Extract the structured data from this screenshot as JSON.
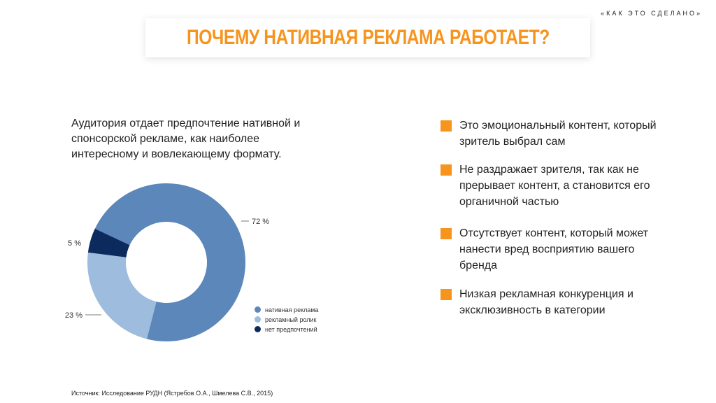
{
  "brand": "«КАК ЭТО СДЕЛАНО»",
  "title": "ПОЧЕМУ НАТИВНАЯ РЕКЛАМА РАБОТАЕТ?",
  "intro": "Аудитория отдает предпочтение нативной и спонсорской рекламе, как наиболее интересному и вовлекающему формату.",
  "chart_data": {
    "type": "pie",
    "donut": true,
    "slices": [
      {
        "label": "нативная реклама",
        "value": 72,
        "value_label": "72 %",
        "color": "#5b87bb"
      },
      {
        "label": "рекламный ролик",
        "value": 23,
        "value_label": "23 %",
        "color": "#9dbcde"
      },
      {
        "label": "нет предпочтений",
        "value": 5,
        "value_label": "5 %",
        "color": "#0d2a5e"
      }
    ],
    "legend_placement": "bottom-right"
  },
  "bullets": [
    "Это эмоциональный контент, который зритель выбрал сам",
    "Не раздражает зрителя, так как не прерывает контент, а становится его органичной частью",
    "Отсутствует контент, который может нанести вред восприятию вашего бренда",
    "Низкая рекламная конкуренция и эксклюзивность в категории"
  ],
  "source": "Источник: Исследование РУДН (Ястребов О.А., Шмелева С.В., 2015)",
  "colors": {
    "accent": "#f7941d"
  }
}
